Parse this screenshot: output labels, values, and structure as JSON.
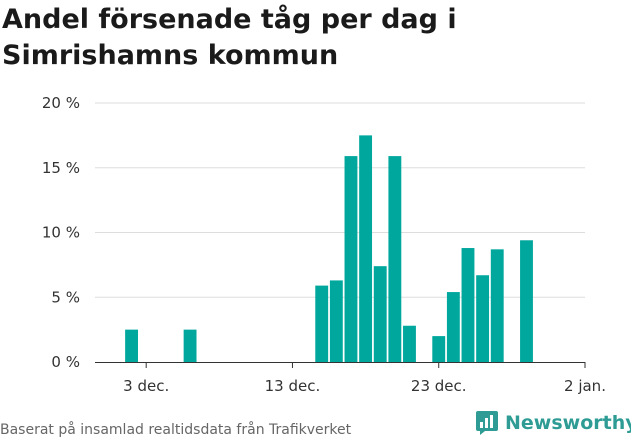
{
  "title": [
    "Andel försenade tåg per dag i",
    "Simrishamns kommun"
  ],
  "footer": "Baserat på insamlad realtidsdata från Trafikverket",
  "brand": "Newsworthy",
  "colors": {
    "bar": "#00a79d",
    "grid": "#dddddd",
    "axis": "#333333",
    "text": "#333333",
    "brand": "#2e9c94"
  },
  "chart_data": {
    "type": "bar",
    "title": "Andel försenade tåg per dag i Simrishamns kommun",
    "xlabel": "",
    "ylabel": "",
    "ylim": [
      0,
      20
    ],
    "y_ticks": [
      0,
      5,
      10,
      15,
      20
    ],
    "y_tick_labels": [
      "0 %",
      "5 %",
      "10 %",
      "15 %",
      "20 %"
    ],
    "x_ticks": [
      {
        "day": 3,
        "label": "3 dec."
      },
      {
        "day": 13,
        "label": "13 dec."
      },
      {
        "day": 23,
        "label": "23 dec."
      },
      {
        "day": 33,
        "label": "2 jan."
      }
    ],
    "x_range": [
      -0.5,
      33
    ],
    "day_unit": "day of December (33 = 2 jan.)",
    "series": [
      {
        "name": "Andel försenade tåg",
        "points": [
          {
            "day": 2,
            "value": 2.5
          },
          {
            "day": 6,
            "value": 2.5
          },
          {
            "day": 15,
            "value": 5.9
          },
          {
            "day": 16,
            "value": 6.3
          },
          {
            "day": 17,
            "value": 15.9
          },
          {
            "day": 18,
            "value": 17.5
          },
          {
            "day": 19,
            "value": 7.4
          },
          {
            "day": 20,
            "value": 15.9
          },
          {
            "day": 21,
            "value": 2.8
          },
          {
            "day": 23,
            "value": 2.0
          },
          {
            "day": 24,
            "value": 5.4
          },
          {
            "day": 25,
            "value": 8.8
          },
          {
            "day": 26,
            "value": 6.7
          },
          {
            "day": 27,
            "value": 8.7
          },
          {
            "day": 29,
            "value": 9.4
          }
        ]
      }
    ]
  }
}
